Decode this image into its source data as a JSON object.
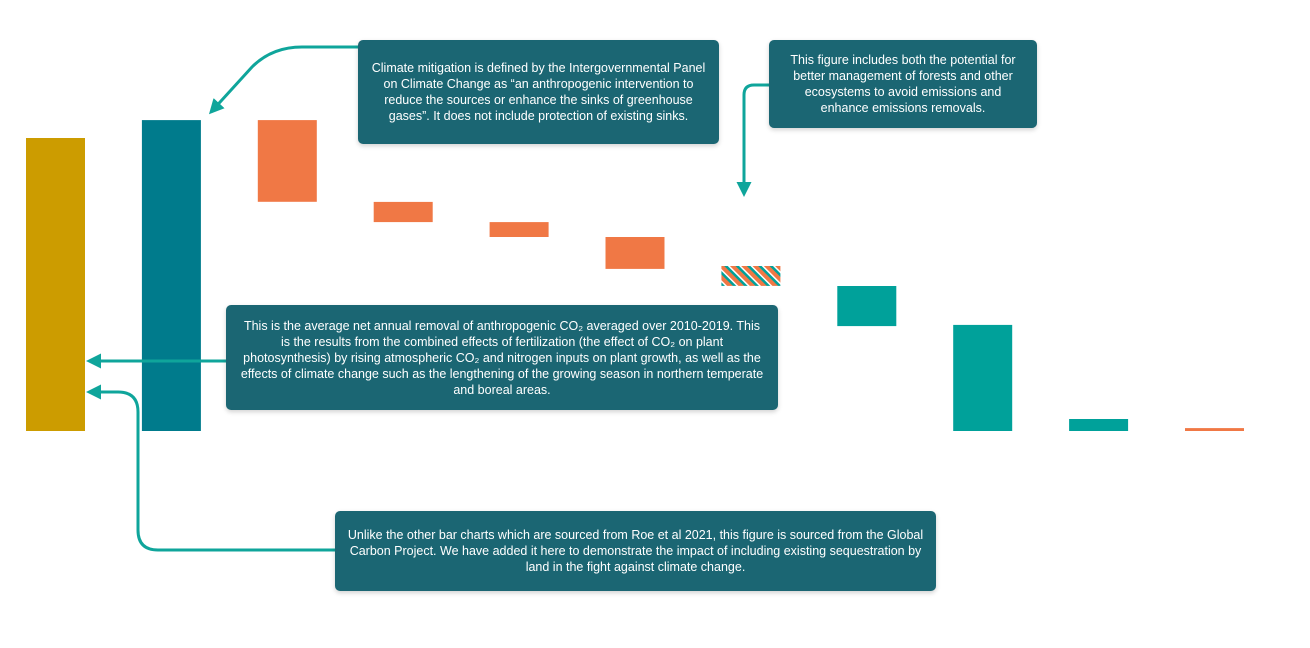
{
  "chart_data": {
    "type": "bar",
    "subtype": "waterfall",
    "title": "",
    "xlabel": "",
    "ylabel": "",
    "axes_visible": false,
    "grid": false,
    "legend": "none",
    "y_range": [
      0,
      100
    ],
    "bars": [
      {
        "id": "bar-land-sink",
        "base": 0,
        "top": 100,
        "color": "#cc9c00",
        "pattern": "solid"
      },
      {
        "id": "bar-total-mitigation",
        "base": 0,
        "top": 106.1,
        "color": "#007b8c",
        "pattern": "solid"
      },
      {
        "id": "bar-step-1",
        "base": 78.2,
        "top": 106.1,
        "color": "#f07845",
        "pattern": "solid"
      },
      {
        "id": "bar-step-2",
        "base": 71.3,
        "top": 78.2,
        "color": "#f07845",
        "pattern": "solid"
      },
      {
        "id": "bar-step-3",
        "base": 66.2,
        "top": 71.3,
        "color": "#f07845",
        "pattern": "solid"
      },
      {
        "id": "bar-step-4",
        "base": 55.3,
        "top": 66.2,
        "color": "#f07845",
        "pattern": "solid"
      },
      {
        "id": "bar-step-5",
        "base": 49.5,
        "top": 56.3,
        "color": "#f07845",
        "pattern": "hatched",
        "hatch_color": "#00a19a"
      },
      {
        "id": "bar-step-6",
        "base": 35.8,
        "top": 49.5,
        "color": "#00a19a",
        "pattern": "solid"
      },
      {
        "id": "bar-step-7",
        "base": 0,
        "top": 36.2,
        "color": "#00a19a",
        "pattern": "solid"
      },
      {
        "id": "bar-step-8",
        "base": 0,
        "top": 4.1,
        "color": "#00a19a",
        "pattern": "solid"
      },
      {
        "id": "bar-step-9",
        "base": 0,
        "top": 1.0,
        "color": "#f07845",
        "pattern": "solid"
      }
    ]
  },
  "annotations": {
    "mitigation": "Climate mitigation is defined by the Intergovernmental Panel on Climate Change as “an anthropogenic intervention to reduce the sources or enhance the sinks of greenhouse gases”. It does not include protection of existing sinks.",
    "forests": "This figure includes both the potential for better management of forests and other ecosystems to avoid emissions and enhance emissions removals.",
    "removal": "This is the average net annual removal of anthropogenic CO₂ averaged over 2010-2019. This is the results from the combined effects of fertilization (the effect of CO₂ on plant photosynthesis) by rising atmospheric CO₂ and nitrogen inputs on plant growth, as well as the effects of climate change such as the lengthening of the growing season in northern temperate and boreal areas.",
    "source": "Unlike the other bar charts which are sourced from Roe et al 2021, this figure is sourced from the Global Carbon Project. We have added it here to demonstrate the impact of including existing sequestration by land in the fight against climate change."
  },
  "colors": {
    "callout_bg": "#1b6673",
    "callout_text": "#ffffff",
    "arrow": "#0fa59b"
  }
}
